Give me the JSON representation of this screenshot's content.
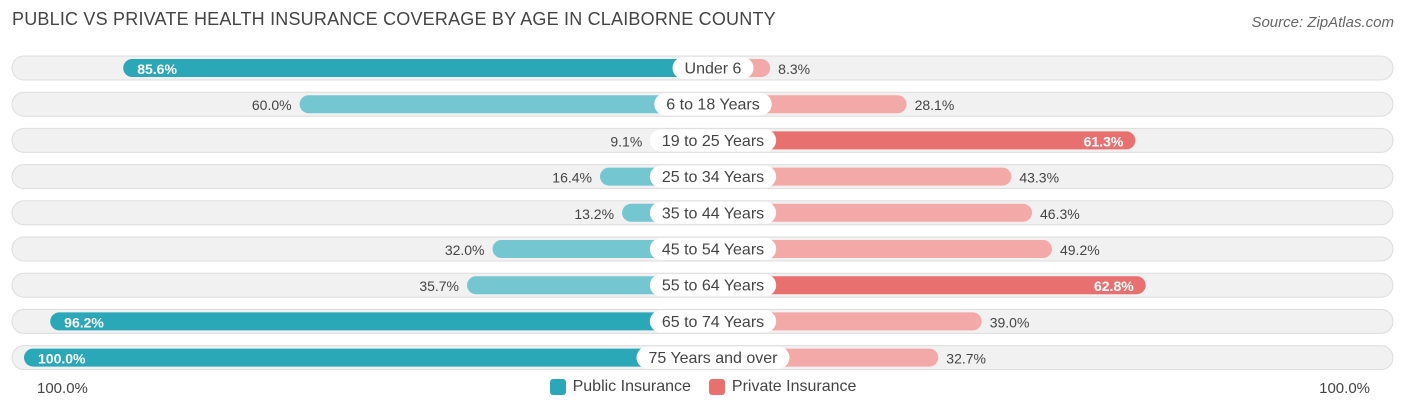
{
  "title": "PUBLIC VS PRIVATE HEALTH INSURANCE COVERAGE BY AGE IN CLAIBORNE COUNTY",
  "source": "Source: ZipAtlas.com",
  "axis": {
    "left_label": "100.0%",
    "right_label": "100.0%"
  },
  "legend": {
    "public_label": "Public Insurance",
    "private_label": "Private Insurance"
  },
  "colors": {
    "public_strong": "#2ba8b8",
    "public_light": "#74c7d1",
    "private_strong": "#e8716f",
    "private_light": "#f2a9a8",
    "track": "#f1f1f1",
    "track_border": "#dddddd"
  },
  "chart_data": {
    "type": "bar",
    "orientation": "horizontal-diverging",
    "title": "PUBLIC VS PRIVATE HEALTH INSURANCE COVERAGE BY AGE IN CLAIBORNE COUNTY",
    "xlim": [
      -100,
      100
    ],
    "categories": [
      "Under 6",
      "6 to 18 Years",
      "19 to 25 Years",
      "25 to 34 Years",
      "35 to 44 Years",
      "45 to 54 Years",
      "55 to 64 Years",
      "65 to 74 Years",
      "75 Years and over"
    ],
    "series": [
      {
        "name": "Public Insurance",
        "values": [
          85.6,
          60.0,
          9.1,
          16.4,
          13.2,
          32.0,
          35.7,
          96.2,
          100.0
        ],
        "labels": [
          "85.6%",
          "60.0%",
          "9.1%",
          "16.4%",
          "13.2%",
          "32.0%",
          "35.7%",
          "96.2%",
          "100.0%"
        ]
      },
      {
        "name": "Private Insurance",
        "values": [
          8.3,
          28.1,
          61.3,
          43.3,
          46.3,
          49.2,
          62.8,
          39.0,
          32.7
        ],
        "labels": [
          "8.3%",
          "28.1%",
          "61.3%",
          "43.3%",
          "46.3%",
          "49.2%",
          "62.8%",
          "39.0%",
          "32.7%"
        ]
      }
    ],
    "legend_position": "bottom-center"
  }
}
